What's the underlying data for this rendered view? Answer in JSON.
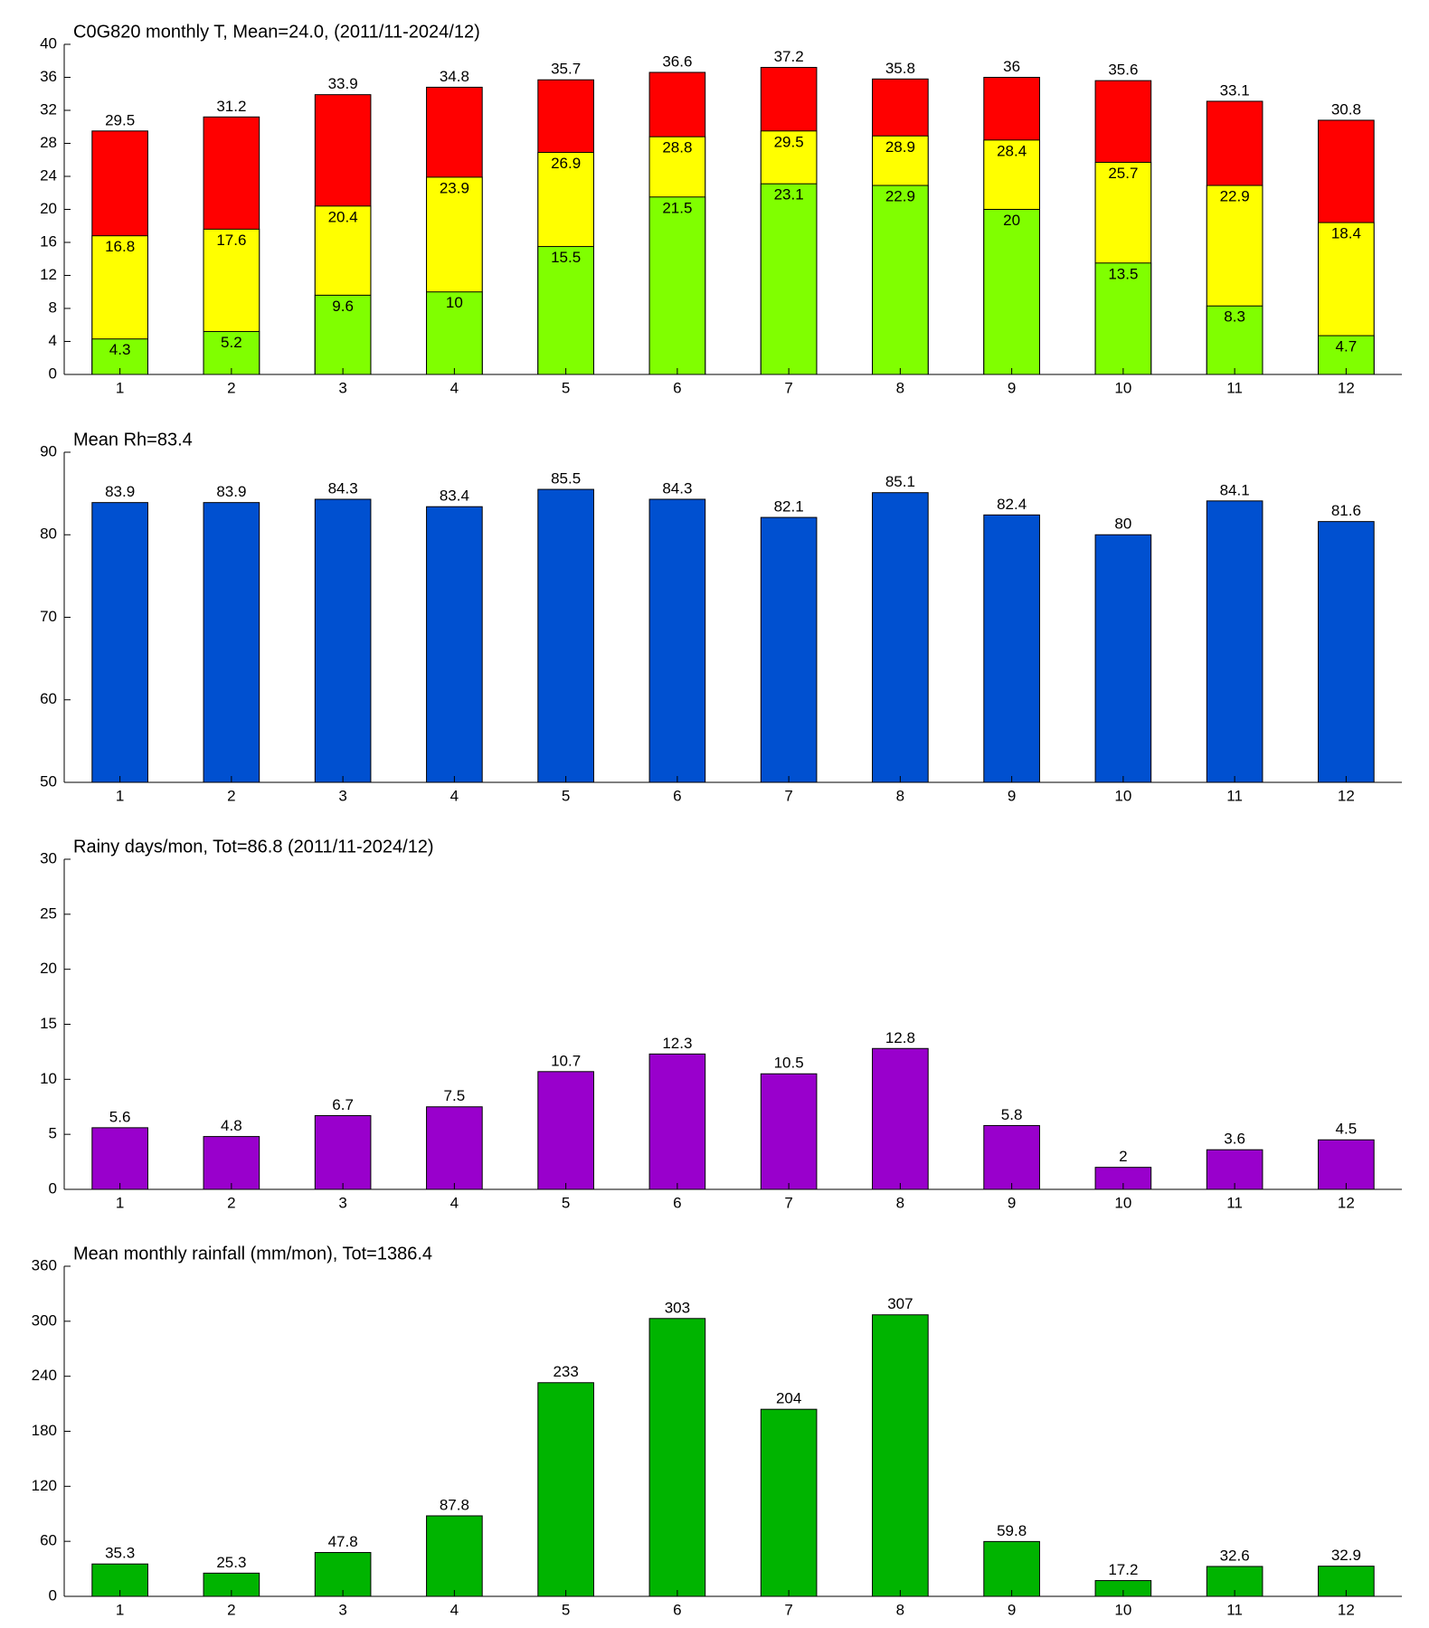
{
  "chart_data": [
    {
      "type": "bar",
      "title": "C0G820 monthly T, Mean=24.0, (2011/11-2024/12)",
      "categories": [
        "1",
        "2",
        "3",
        "4",
        "5",
        "6",
        "7",
        "8",
        "9",
        "10",
        "11",
        "12"
      ],
      "series": [
        {
          "color": "#ff0000",
          "values": [
            29.5,
            31.2,
            33.9,
            34.8,
            35.7,
            36.6,
            37.2,
            35.8,
            36,
            35.6,
            33.1,
            30.8
          ]
        },
        {
          "color": "#ffff00",
          "values": [
            16.8,
            17.6,
            20.4,
            23.9,
            26.9,
            28.8,
            29.5,
            28.9,
            28.4,
            25.7,
            22.9,
            18.4
          ]
        },
        {
          "color": "#80ff00",
          "values": [
            4.3,
            5.2,
            9.6,
            10,
            15.5,
            21.5,
            23.1,
            22.9,
            20,
            13.5,
            8.3,
            4.7
          ]
        }
      ],
      "ylim": [
        0,
        40
      ],
      "yticks": [
        0,
        4,
        8,
        12,
        16,
        20,
        24,
        28,
        32,
        36,
        40
      ]
    },
    {
      "type": "bar",
      "title": "Mean Rh=83.4",
      "categories": [
        "1",
        "2",
        "3",
        "4",
        "5",
        "6",
        "7",
        "8",
        "9",
        "10",
        "11",
        "12"
      ],
      "values": [
        83.9,
        83.9,
        84.3,
        83.4,
        85.5,
        84.3,
        82.1,
        85.1,
        82.4,
        80,
        84.1,
        81.6
      ],
      "color": "#0050d0",
      "ylim": [
        50,
        90
      ],
      "yticks": [
        50,
        60,
        70,
        80,
        90
      ]
    },
    {
      "type": "bar",
      "title": "Rainy days/mon, Tot=86.8 (2011/11-2024/12)",
      "categories": [
        "1",
        "2",
        "3",
        "4",
        "5",
        "6",
        "7",
        "8",
        "9",
        "10",
        "11",
        "12"
      ],
      "values": [
        5.6,
        4.8,
        6.7,
        7.5,
        10.7,
        12.3,
        10.5,
        12.8,
        5.8,
        2,
        3.6,
        4.5
      ],
      "color": "#9900cc",
      "ylim": [
        0,
        30
      ],
      "yticks": [
        0,
        5,
        10,
        15,
        20,
        25,
        30
      ]
    },
    {
      "type": "bar",
      "title": "Mean monthly rainfall (mm/mon), Tot=1386.4",
      "categories": [
        "1",
        "2",
        "3",
        "4",
        "5",
        "6",
        "7",
        "8",
        "9",
        "10",
        "11",
        "12"
      ],
      "values": [
        35.3,
        25.3,
        47.8,
        87.8,
        233,
        303,
        204,
        307,
        59.8,
        17.2,
        32.6,
        32.9
      ],
      "color": "#00b400",
      "ylim": [
        0,
        360
      ],
      "yticks": [
        0,
        60,
        120,
        180,
        240,
        300,
        360
      ]
    }
  ]
}
